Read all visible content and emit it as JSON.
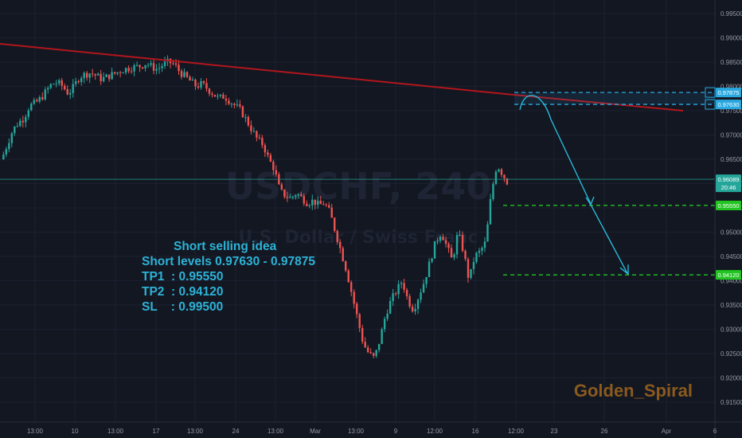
{
  "symbol_watermark": "USDCHF, 240",
  "watermark_subtitle": "U.S. Dollar / Swiss Franc",
  "idea": {
    "title": "Short selling idea",
    "lines": [
      "Short levels 0.97630 - 0.97875",
      "TP1  : 0.95550",
      "TP2  : 0.94120",
      "SL    : 0.99500"
    ]
  },
  "author": "Golden_Spiral",
  "colors": {
    "background": "#131722",
    "up": "#26a69a",
    "down": "#ef5350",
    "trendline": "#b2161c",
    "idea_text": "#2db2d6",
    "short_zone": "#29a8e0",
    "target": "#22c422",
    "arrow": "#29c1e0",
    "author": "#8a5a1e"
  },
  "chart_data": {
    "type": "candlestick",
    "title": "",
    "x_ticks": [
      "13:00",
      "10",
      "13:00",
      "17",
      "13:00",
      "24",
      "13:00",
      "Mar",
      "13:00",
      "9",
      "12:00",
      "16",
      "12:00",
      "23",
      "26",
      "Apr",
      "6"
    ],
    "y_ticks": [
      "0.99500",
      "0.99000",
      "0.98500",
      "0.98000",
      "0.97500",
      "0.97000",
      "0.96500",
      "0.96000",
      "0.95500",
      "0.95000",
      "0.94500",
      "0.94000",
      "0.93500",
      "0.93000",
      "0.92500",
      "0.92000",
      "0.91500"
    ],
    "ylim": [
      0.9125,
      0.9975
    ],
    "price_labels": [
      {
        "value": 0.97875,
        "text": "0.97875",
        "style": "short_zone"
      },
      {
        "value": 0.9763,
        "text": "0.97630",
        "style": "short_zone"
      },
      {
        "value": 0.96089,
        "text": "0.96089",
        "sub": "20:46",
        "style": "current"
      },
      {
        "value": 0.9555,
        "text": "0.95550",
        "style": "target"
      },
      {
        "value": 0.9412,
        "text": "0.94120",
        "style": "target"
      }
    ],
    "close_path": [
      [
        0,
        0.965
      ],
      [
        6,
        0.968
      ],
      [
        12,
        0.971
      ],
      [
        18,
        0.9725
      ],
      [
        24,
        0.9735
      ],
      [
        30,
        0.976
      ],
      [
        36,
        0.9765
      ],
      [
        42,
        0.9775
      ],
      [
        48,
        0.979
      ],
      [
        54,
        0.9805
      ],
      [
        60,
        0.9808
      ],
      [
        66,
        0.98
      ],
      [
        72,
        0.9785
      ],
      [
        78,
        0.98
      ],
      [
        84,
        0.982
      ],
      [
        90,
        0.9825
      ],
      [
        96,
        0.9828
      ],
      [
        102,
        0.9822
      ],
      [
        108,
        0.9815
      ],
      [
        114,
        0.982
      ],
      [
        120,
        0.9825
      ],
      [
        126,
        0.983
      ],
      [
        132,
        0.9835
      ],
      [
        138,
        0.9838
      ],
      [
        144,
        0.984
      ],
      [
        150,
        0.9842
      ],
      [
        156,
        0.9848
      ],
      [
        162,
        0.984
      ],
      [
        168,
        0.9835
      ],
      [
        174,
        0.9845
      ],
      [
        180,
        0.985
      ],
      [
        186,
        0.9846
      ],
      [
        192,
        0.983
      ],
      [
        198,
        0.982
      ],
      [
        204,
        0.981
      ],
      [
        210,
        0.98
      ],
      [
        216,
        0.9805
      ],
      [
        222,
        0.9795
      ],
      [
        228,
        0.9785
      ],
      [
        234,
        0.9775
      ],
      [
        240,
        0.978
      ],
      [
        246,
        0.977
      ],
      [
        252,
        0.976
      ],
      [
        258,
        0.975
      ],
      [
        264,
        0.973
      ],
      [
        270,
        0.971
      ],
      [
        276,
        0.969
      ],
      [
        282,
        0.968
      ],
      [
        288,
        0.965
      ],
      [
        294,
        0.963
      ],
      [
        300,
        0.9585
      ],
      [
        306,
        0.9575
      ],
      [
        312,
        0.957
      ],
      [
        318,
        0.958
      ],
      [
        324,
        0.957
      ],
      [
        330,
        0.956
      ],
      [
        336,
        0.9565
      ],
      [
        342,
        0.9555
      ],
      [
        348,
        0.956
      ],
      [
        354,
        0.954
      ],
      [
        360,
        0.95
      ],
      [
        366,
        0.946
      ],
      [
        372,
        0.942
      ],
      [
        378,
        0.937
      ],
      [
        384,
        0.932
      ],
      [
        390,
        0.927
      ],
      [
        396,
        0.925
      ],
      [
        402,
        0.924
      ],
      [
        408,
        0.928
      ],
      [
        414,
        0.933
      ],
      [
        420,
        0.936
      ],
      [
        426,
        0.938
      ],
      [
        432,
        0.94
      ],
      [
        438,
        0.936
      ],
      [
        444,
        0.934
      ],
      [
        450,
        0.937
      ],
      [
        456,
        0.94
      ],
      [
        462,
        0.944
      ],
      [
        468,
        0.948
      ],
      [
        474,
        0.95
      ],
      [
        480,
        0.947
      ],
      [
        486,
        0.944
      ],
      [
        492,
        0.95
      ],
      [
        498,
        0.946
      ],
      [
        504,
        0.94
      ],
      [
        510,
        0.945
      ],
      [
        516,
        0.946
      ],
      [
        522,
        0.948
      ],
      [
        528,
        0.958
      ],
      [
        534,
        0.964
      ],
      [
        540,
        0.962
      ],
      [
        546,
        0.96
      ]
    ],
    "trendline": {
      "from": [
        0,
        0.988
      ],
      "to": [
        500,
        0.978
      ]
    },
    "short_zone": [
      0.9763,
      0.97875
    ],
    "targets": [
      0.9555,
      0.9412
    ],
    "current_price": 0.96089
  }
}
